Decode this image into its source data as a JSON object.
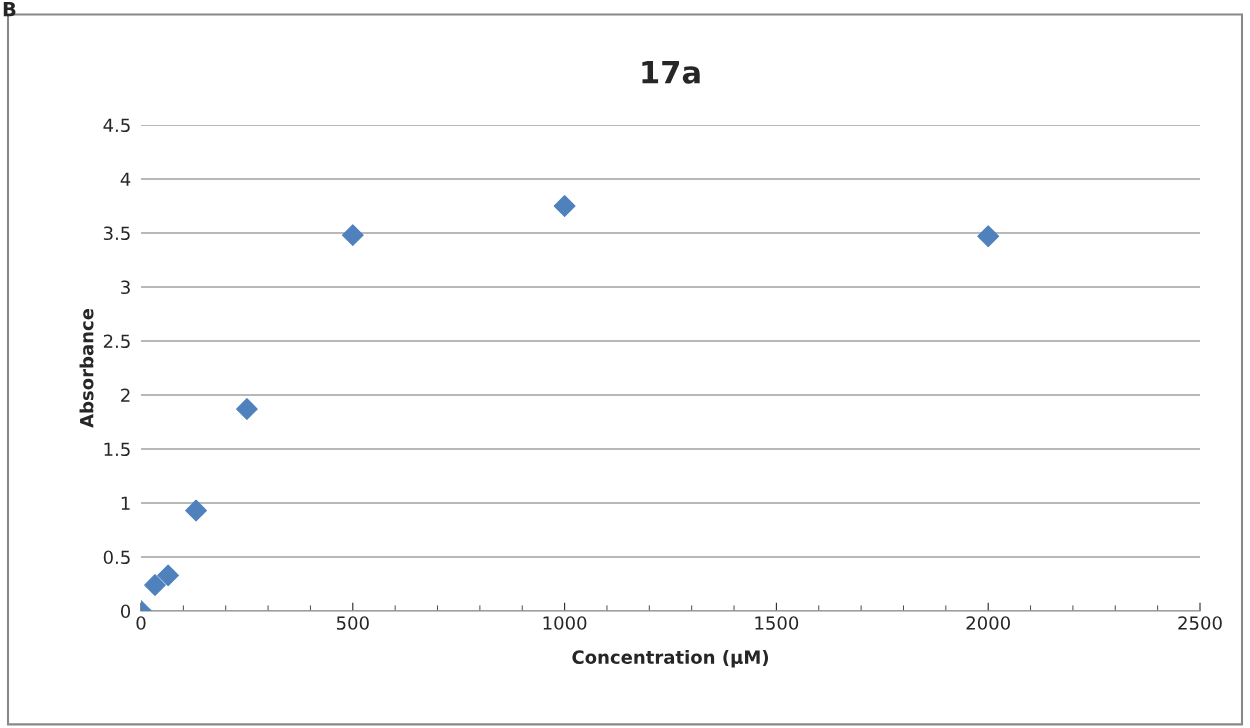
{
  "chart_data": {
    "type": "scatter",
    "title": "17a",
    "xlabel": "Concentration (µM)",
    "ylabel": "Absorbance",
    "annotations": [
      "B"
    ],
    "x": [
      0,
      33,
      64,
      130,
      250,
      500,
      1000,
      2000
    ],
    "series": [
      {
        "color": "#4f81bd",
        "values": [
          0,
          0.24,
          0.33,
          0.93,
          1.87,
          3.48,
          3.75,
          3.47
        ]
      }
    ],
    "xlim": [
      0,
      2500
    ],
    "xticks": [
      0,
      500,
      1000,
      1500,
      2000,
      2500
    ],
    "ylim": [
      0,
      4.5
    ],
    "yticks": [
      0,
      0.5,
      1,
      1.5,
      2,
      2.5,
      3,
      3.5,
      4,
      4.5
    ],
    "grid": "y",
    "marker": "diamond",
    "legend": false
  }
}
